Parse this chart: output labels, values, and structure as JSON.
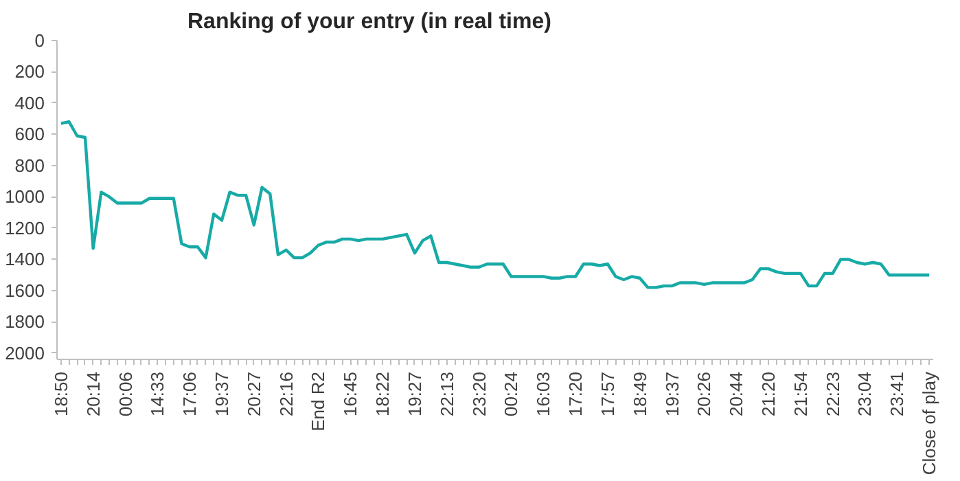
{
  "chart_data": {
    "type": "line",
    "title": "Ranking of your entry (in real time)",
    "categories": [
      "18:50",
      null,
      null,
      null,
      "20:14",
      null,
      null,
      null,
      "00:06",
      null,
      null,
      null,
      "14:33",
      null,
      null,
      null,
      "17:06",
      null,
      null,
      null,
      "19:37",
      null,
      null,
      null,
      "20:27",
      null,
      null,
      null,
      "22:16",
      null,
      null,
      null,
      "End R2",
      null,
      null,
      null,
      "16:45",
      null,
      null,
      null,
      "18:22",
      null,
      null,
      null,
      "19:27",
      null,
      null,
      null,
      "22:13",
      null,
      null,
      null,
      "23:20",
      null,
      null,
      null,
      "00:24",
      null,
      null,
      null,
      "16:03",
      null,
      null,
      null,
      "17:20",
      null,
      null,
      null,
      "17:57",
      null,
      null,
      null,
      "18:49",
      null,
      null,
      null,
      "19:37",
      null,
      null,
      null,
      "20:26",
      null,
      null,
      null,
      "20:44",
      null,
      null,
      null,
      "21:20",
      null,
      null,
      null,
      "21:54",
      null,
      null,
      null,
      "22:23",
      null,
      null,
      null,
      "23:04",
      null,
      null,
      null,
      "23:41",
      null,
      null,
      null,
      "Close of play"
    ],
    "series": [
      {
        "color": "#17aaa6",
        "values": [
          530,
          520,
          610,
          620,
          1330,
          970,
          1000,
          1040,
          1040,
          1040,
          1040,
          1010,
          1010,
          1010,
          1010,
          1300,
          1320,
          1320,
          1390,
          1110,
          1150,
          970,
          990,
          990,
          1180,
          940,
          980,
          1370,
          1340,
          1390,
          1390,
          1360,
          1310,
          1290,
          1290,
          1270,
          1270,
          1280,
          1270,
          1270,
          1270,
          1260,
          1250,
          1240,
          1360,
          1280,
          1250,
          1420,
          1420,
          1430,
          1440,
          1450,
          1450,
          1430,
          1430,
          1430,
          1510,
          1510,
          1510,
          1510,
          1510,
          1520,
          1520,
          1510,
          1510,
          1430,
          1430,
          1440,
          1430,
          1510,
          1530,
          1510,
          1520,
          1580,
          1580,
          1570,
          1570,
          1550,
          1550,
          1550,
          1560,
          1550,
          1550,
          1550,
          1550,
          1550,
          1530,
          1460,
          1460,
          1480,
          1490,
          1490,
          1490,
          1570,
          1570,
          1490,
          1490,
          1400,
          1400,
          1420,
          1430,
          1420,
          1430,
          1500,
          1500,
          1500,
          1500,
          1500,
          1500
        ]
      }
    ],
    "ylim": [
      2040,
      0
    ],
    "yticks": [
      0,
      200,
      400,
      600,
      800,
      1000,
      1200,
      1400,
      1600,
      1800,
      2000
    ]
  }
}
